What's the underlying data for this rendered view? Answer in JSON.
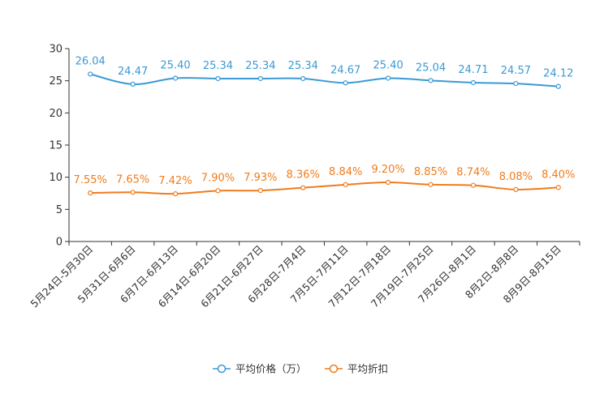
{
  "chart_data": {
    "type": "line",
    "title": "",
    "xlabel": "",
    "ylabel": "",
    "ylim": [
      0,
      30
    ],
    "yticks": [
      0,
      5,
      10,
      15,
      20,
      25,
      30
    ],
    "categories": [
      "5月24日-5月30日",
      "5月31日-6月6日",
      "6月7日-6月13日",
      "6月14日-6月20日",
      "6月21日-6月27日",
      "6月28日-7月4日",
      "7月5日-7月11日",
      "7月12日-7月18日",
      "7月19日-7月25日",
      "7月26日-8月1日",
      "8月2日-8月8日",
      "8月9日-8月15日"
    ],
    "series": [
      {
        "name": "平均价格（万）",
        "color": "#3a9ad5",
        "values": [
          26.04,
          24.47,
          25.4,
          25.34,
          25.34,
          25.34,
          24.67,
          25.4,
          25.04,
          24.71,
          24.57,
          24.12
        ],
        "labels": [
          "26.04",
          "24.47",
          "25.40",
          "25.34",
          "25.34",
          "25.34",
          "24.67",
          "25.40",
          "25.04",
          "24.71",
          "24.57",
          "24.12"
        ]
      },
      {
        "name": "平均折扣",
        "color": "#f07c1c",
        "values": [
          7.55,
          7.65,
          7.42,
          7.9,
          7.93,
          8.36,
          8.84,
          9.2,
          8.85,
          8.74,
          8.08,
          8.4
        ],
        "labels": [
          "7.55%",
          "7.65%",
          "7.42%",
          "7.90%",
          "7.93%",
          "8.36%",
          "8.84%",
          "9.20%",
          "8.85%",
          "8.74%",
          "8.08%",
          "8.40%"
        ]
      }
    ],
    "legend_position": "bottom-center",
    "grid": false
  }
}
